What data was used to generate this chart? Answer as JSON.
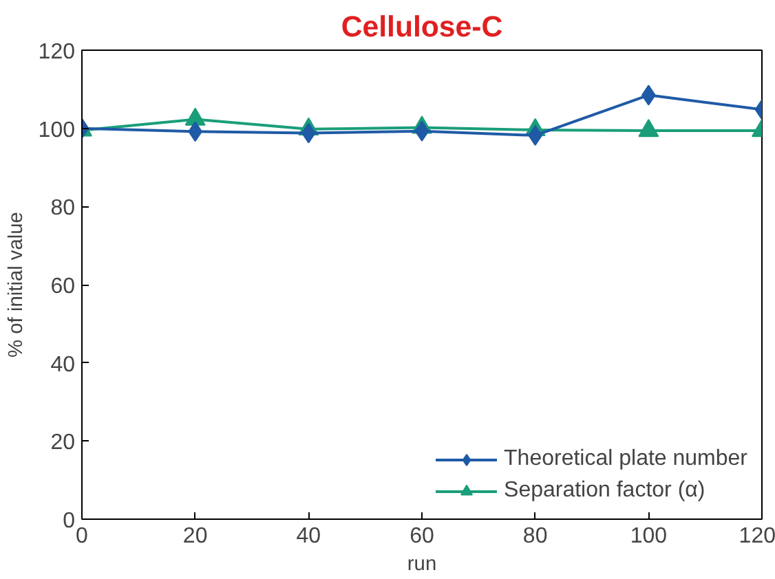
{
  "chart_data": {
    "type": "line",
    "title": "Cellulose-C",
    "xlabel": "run",
    "ylabel": "% of initial value",
    "x": [
      0,
      20,
      40,
      60,
      80,
      100,
      120
    ],
    "series": [
      {
        "name": "Theoretical plate number",
        "color": "#1f5aa6",
        "marker": "diamond",
        "values": [
          100,
          99.2,
          98.8,
          99.3,
          98.2,
          108.5,
          104.8
        ]
      },
      {
        "name": "Separation factor (α)",
        "color": "#1a9e7a",
        "marker": "triangle",
        "values": [
          99.5,
          102.3,
          99.8,
          100.2,
          99.6,
          99.4,
          99.4
        ]
      }
    ],
    "xlim": [
      0,
      120
    ],
    "ylim": [
      0,
      120
    ],
    "xticks": [
      0,
      20,
      40,
      60,
      80,
      100,
      120
    ],
    "yticks": [
      0,
      20,
      40,
      60,
      80,
      100,
      120
    ],
    "grid": false,
    "legend": "bottom right",
    "line_style": "solid"
  }
}
